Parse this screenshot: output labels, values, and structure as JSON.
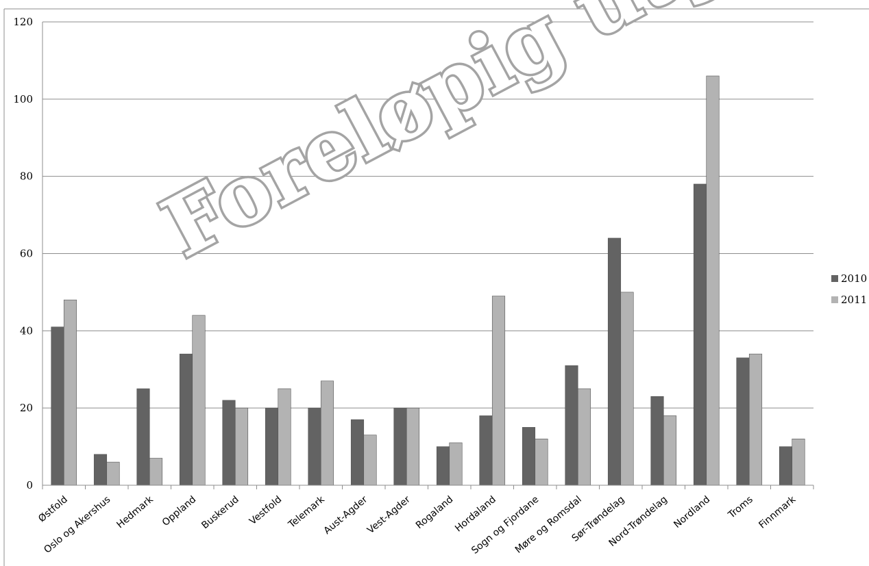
{
  "chart_data": {
    "type": "bar",
    "categories": [
      "Østfold",
      "Oslo og Akershus",
      "Hedmark",
      "Oppland",
      "Buskerud",
      "Vestfold",
      "Telemark",
      "Aust-Agder",
      "Vest-Agder",
      "Rogaland",
      "Hordaland",
      "Sogn og Fjordane",
      "Møre og Romsdal",
      "Sør-Trøndelag",
      "Nord-Trøndelag",
      "Nordland",
      "Troms",
      "Finnmark"
    ],
    "series": [
      {
        "name": "2010",
        "color": "#636363",
        "values": [
          41,
          8,
          25,
          34,
          22,
          20,
          20,
          17,
          20,
          10,
          18,
          15,
          31,
          64,
          23,
          78,
          33,
          10
        ]
      },
      {
        "name": "2011",
        "color": "#b3b3b3",
        "values": [
          48,
          6,
          7,
          44,
          20,
          25,
          27,
          13,
          20,
          11,
          49,
          12,
          25,
          50,
          18,
          106,
          34,
          12
        ]
      }
    ],
    "ylim": [
      0,
      120
    ],
    "yticks": [
      "0",
      "20",
      "40",
      "60",
      "80",
      "100",
      "120"
    ],
    "grid": true,
    "legend_position": "right",
    "title": "",
    "xlabel": "",
    "ylabel": ""
  },
  "watermark": {
    "text": "Foreløpig utgave",
    "color": "#a4a4a4"
  }
}
